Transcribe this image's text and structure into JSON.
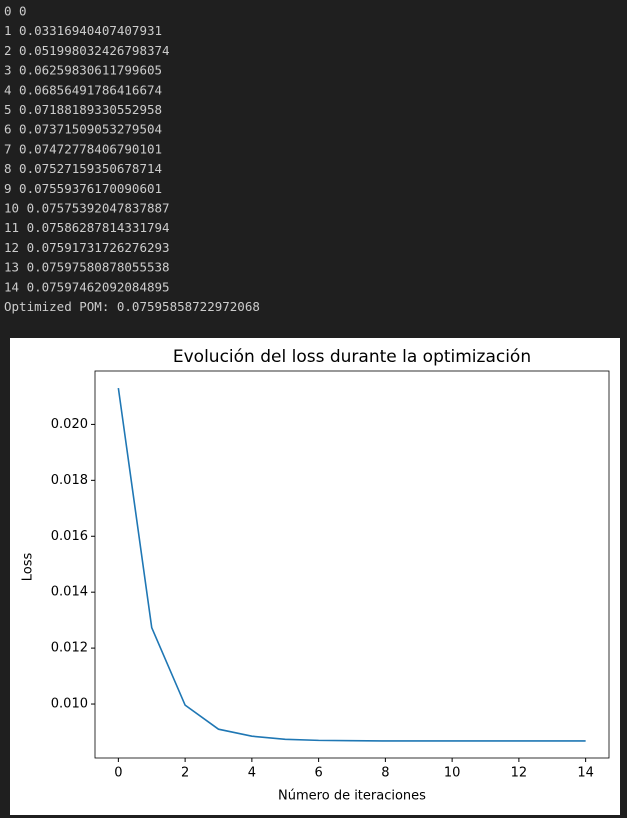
{
  "output_lines": [
    "0 0",
    "1 0.03316940407407931",
    "2 0.051998032426798374",
    "3 0.06259830611799605",
    "4 0.06856491786416674",
    "5 0.07188189330552958",
    "6 0.07371509053279504",
    "7 0.07472778406790101",
    "8 0.07527159350678714",
    "9 0.07559376170090601",
    "10 0.07575392047837887",
    "11 0.07586287814331794",
    "12 0.07591731726276293",
    "13 0.07597580878055538",
    "14 0.07597462092084895",
    "Optimized POM: 0.07595858722972068"
  ],
  "chart_data": {
    "type": "line",
    "title": "Evolución del loss durante la optimización",
    "x_label": "Número de iteraciones",
    "y_label": "Loss",
    "x": [
      0,
      1,
      2,
      3,
      4,
      5,
      6,
      7,
      8,
      9,
      10,
      11,
      12,
      13,
      14
    ],
    "values": [
      0.0213,
      0.01273,
      0.00996,
      0.0091,
      0.00885,
      0.00874,
      0.0087,
      0.00869,
      0.00868,
      0.00868,
      0.00868,
      0.00868,
      0.00868,
      0.00868,
      0.00868
    ],
    "color": "#1f77b4",
    "xlim": [
      -0.7,
      14.7
    ],
    "xticks": [
      0,
      2,
      4,
      6,
      8,
      10,
      12,
      14
    ],
    "ylim": [
      0.00807,
      0.02191
    ],
    "yticks": [
      {
        "value": 0.01,
        "label": "0.010"
      },
      0.012,
      0.014,
      0.016,
      0.018,
      {
        "value": 0.02,
        "label": "0.020"
      }
    ]
  }
}
